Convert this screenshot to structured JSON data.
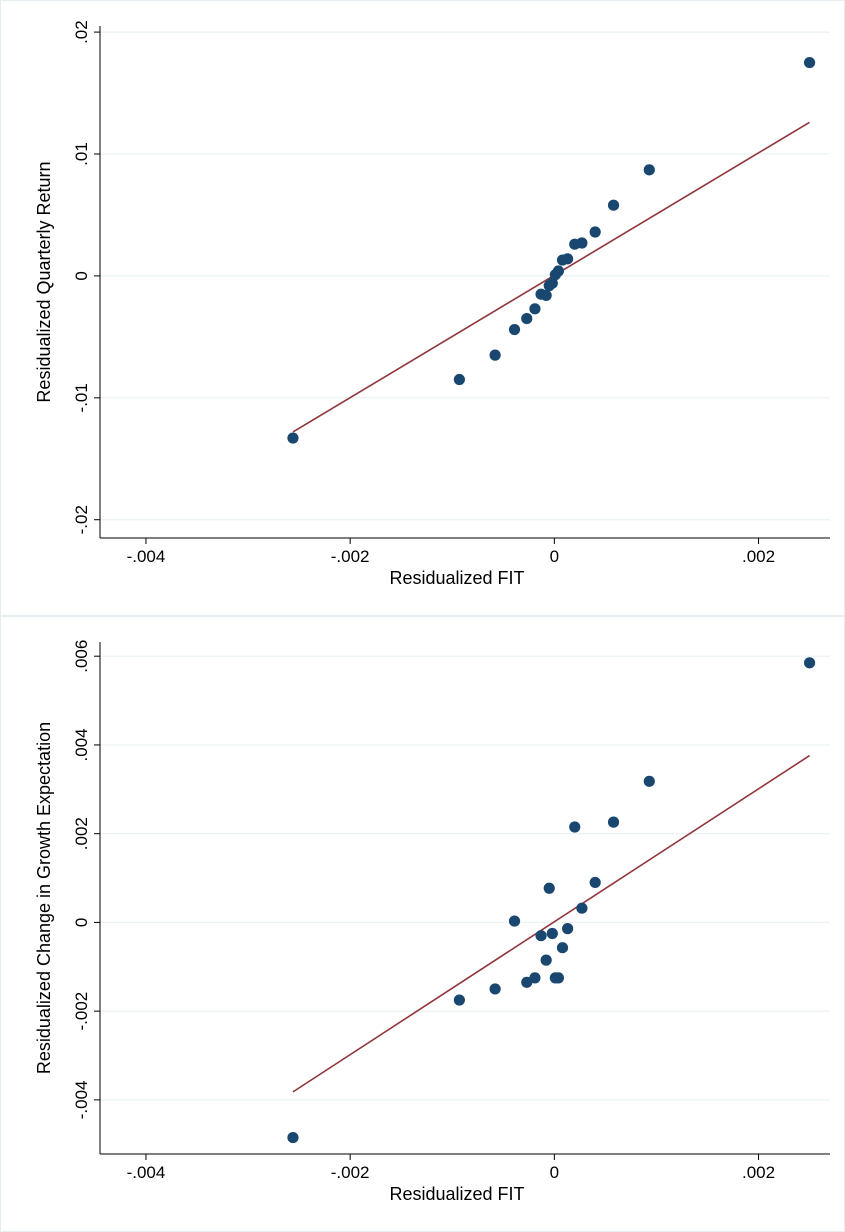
{
  "colors": {
    "points": "#1a476f",
    "fit_line": "#90353b",
    "grid": "#eaf2f3",
    "axis": "#000000",
    "panel_border": "#e5edf0"
  },
  "chart_data": [
    {
      "type": "scatter",
      "title": "",
      "xlabel": "Residualized FIT",
      "ylabel": "Residualized Quarterly Return",
      "xlim": [
        -0.00445,
        0.0027
      ],
      "ylim": [
        -0.0215,
        0.0205
      ],
      "xticks": [
        -0.004,
        -0.002,
        0,
        0.002
      ],
      "xtick_labels": [
        "-.004",
        "-.002",
        "0",
        ".002"
      ],
      "yticks": [
        -0.02,
        -0.01,
        0,
        0.01,
        0.02
      ],
      "ytick_labels": [
        "-.02",
        "-.01",
        "0",
        ".01",
        ".02"
      ],
      "grid": true,
      "points": {
        "x": [
          -0.00256,
          -0.00093,
          -0.00058,
          -0.00039,
          -0.00027,
          -0.00019,
          -0.00013,
          -8e-05,
          -5e-05,
          -2e-05,
          1e-05,
          4e-05,
          8e-05,
          0.00013,
          0.0002,
          0.00027,
          0.0004,
          0.00058,
          0.00093,
          0.0025
        ],
        "y": [
          -0.0133,
          -0.0085,
          -0.0065,
          -0.0044,
          -0.0035,
          -0.0027,
          -0.0015,
          -0.0016,
          -0.0008,
          -0.0006,
          0.0001,
          0.0004,
          0.0013,
          0.0014,
          0.0026,
          0.0027,
          0.0036,
          0.0058,
          0.0087,
          0.0175
        ]
      },
      "fit_line": {
        "x": [
          -0.00256,
          0.0025
        ],
        "y": [
          -0.0128,
          0.0126
        ]
      }
    },
    {
      "type": "scatter",
      "title": "",
      "xlabel": "Residualized FIT",
      "ylabel": "Residualized Change in Growth Expectation",
      "xlim": [
        -0.00445,
        0.0027
      ],
      "ylim": [
        -0.00522,
        0.00632
      ],
      "xticks": [
        -0.004,
        -0.002,
        0,
        0.002
      ],
      "xtick_labels": [
        "-.004",
        "-.002",
        "0",
        ".002"
      ],
      "yticks": [
        -0.004,
        -0.002,
        0,
        0.002,
        0.004,
        0.006
      ],
      "ytick_labels": [
        "-.004",
        "-.002",
        "0",
        ".002",
        ".004",
        ".006"
      ],
      "grid": true,
      "points": {
        "x": [
          -0.00256,
          -0.00093,
          -0.00058,
          -0.00039,
          -0.00027,
          -0.00019,
          -0.00013,
          -8e-05,
          -5e-05,
          -2e-05,
          1e-05,
          4e-05,
          8e-05,
          0.00013,
          0.0002,
          0.00027,
          0.0004,
          0.00058,
          0.00093,
          0.0025
        ],
        "y": [
          -0.00485,
          -0.00175,
          -0.0015,
          3e-05,
          -0.00135,
          -0.00125,
          -0.0003,
          -0.00085,
          0.00077,
          -0.00025,
          -0.00125,
          -0.00125,
          -0.00057,
          -0.00014,
          0.00215,
          0.00032,
          0.0009,
          0.00226,
          0.00318,
          0.00585
        ]
      },
      "fit_line": {
        "x": [
          -0.00256,
          0.0025
        ],
        "y": [
          -0.00382,
          0.00376
        ]
      }
    }
  ]
}
